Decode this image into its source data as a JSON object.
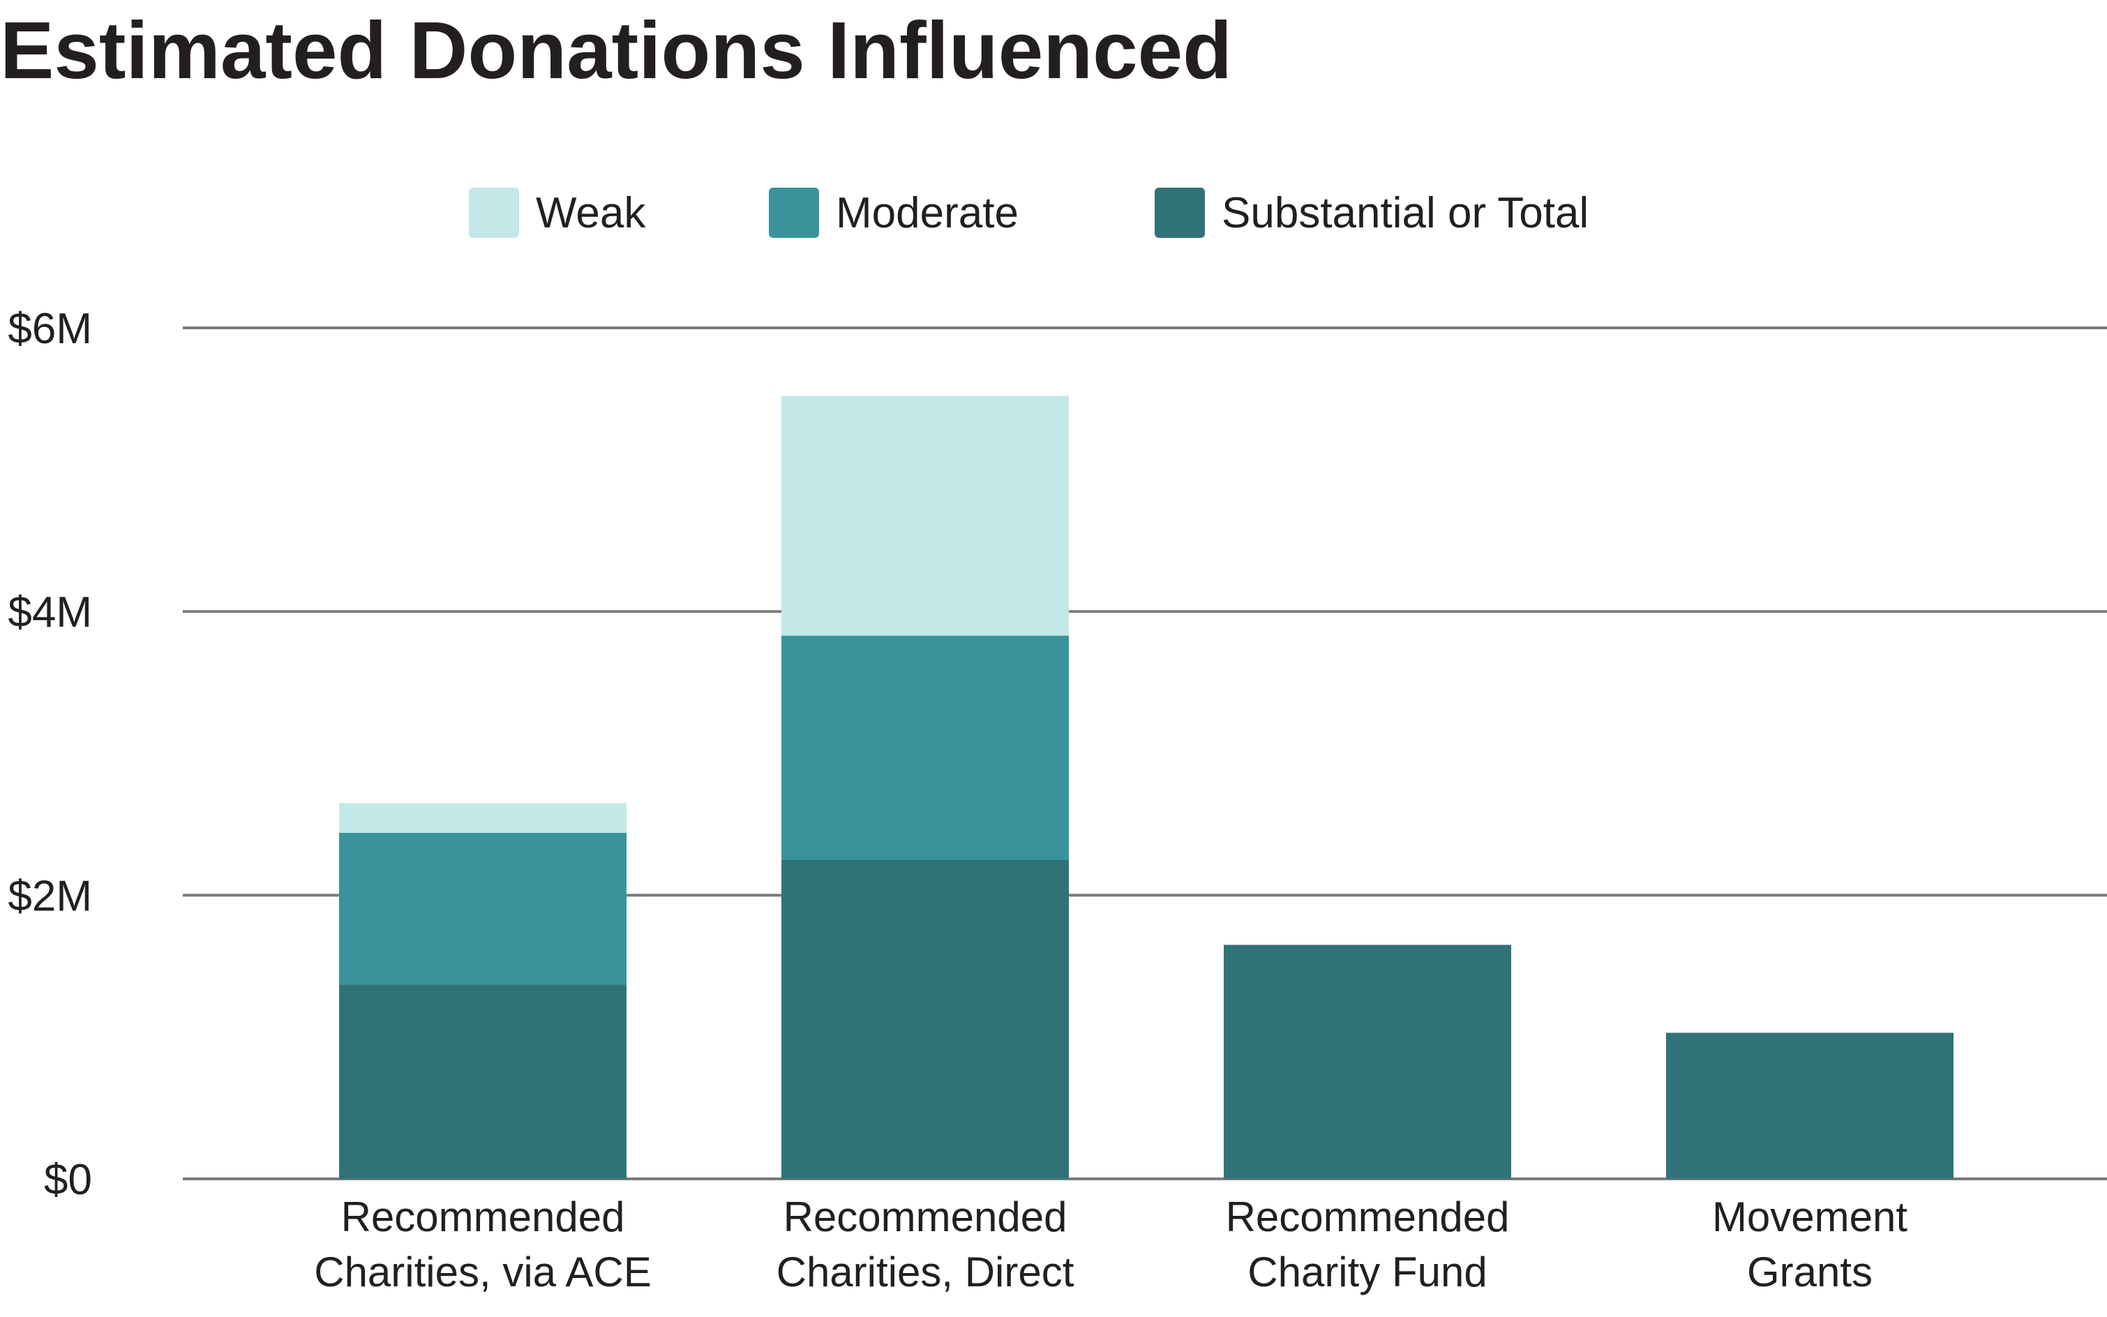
{
  "chart_data": {
    "type": "bar",
    "stacked": true,
    "title": "Estimated Donations Influenced",
    "categories": [
      [
        "Recommended",
        "Charities, via ACE"
      ],
      [
        "Recommended",
        "Charities, Direct"
      ],
      [
        "Recommended",
        "Charity Fund"
      ],
      [
        "Movement",
        "Grants"
      ]
    ],
    "series": [
      {
        "name": "Substantial or Total",
        "color": "#317278",
        "values": [
          1.37,
          2.25,
          1.65,
          1.03
        ]
      },
      {
        "name": "Moderate",
        "color": "#3a939b",
        "values": [
          1.07,
          1.58,
          0,
          0
        ]
      },
      {
        "name": "Weak",
        "color": "#c4e8e8",
        "values": [
          0.21,
          1.69,
          0,
          0
        ]
      }
    ],
    "legend_order": [
      "Weak",
      "Moderate",
      "Substantial or Total"
    ],
    "legend_position": "top-center",
    "ylim": [
      0,
      6
    ],
    "y_ticks": [
      {
        "value": 0,
        "label": "$0"
      },
      {
        "value": 2,
        "label": "$2M"
      },
      {
        "value": 4,
        "label": "$4M"
      },
      {
        "value": 6,
        "label": "$6M"
      }
    ],
    "grid": true,
    "gridline_color": "#7a7a7a"
  }
}
